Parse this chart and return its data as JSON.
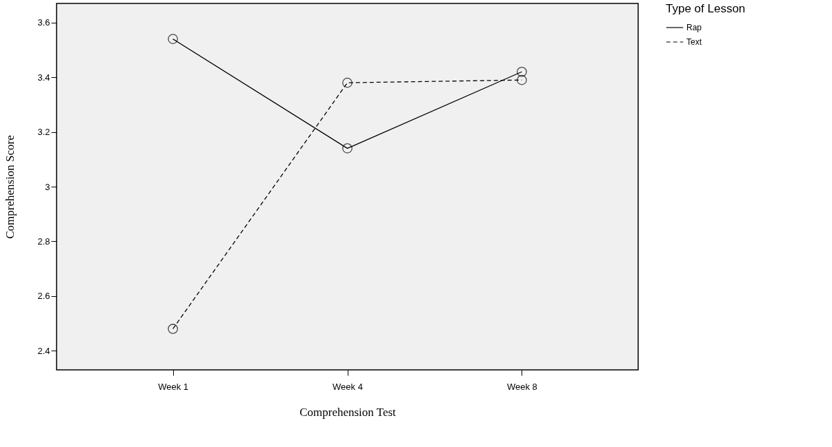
{
  "chart_data": {
    "type": "line",
    "categories": [
      "Week 1",
      "Week 4",
      "Week 8"
    ],
    "series": [
      {
        "name": "Rap",
        "color": "#000000",
        "line_style": "solid",
        "values": [
          3.54,
          3.14,
          3.42
        ]
      },
      {
        "name": "Text",
        "color": "#000000",
        "line_style": "dashed",
        "values": [
          2.48,
          3.38,
          3.39
        ]
      }
    ],
    "xlabel": "Comprehension Test",
    "ylabel": "Comprehension Score",
    "legend_title": "Type of Lesson",
    "ylim": [
      2.33,
      3.67
    ],
    "yticks": [
      2.4,
      2.6,
      2.8,
      3,
      3.2,
      3.4,
      3.6
    ],
    "grid": false,
    "legend": "top right",
    "marker": "circle"
  }
}
